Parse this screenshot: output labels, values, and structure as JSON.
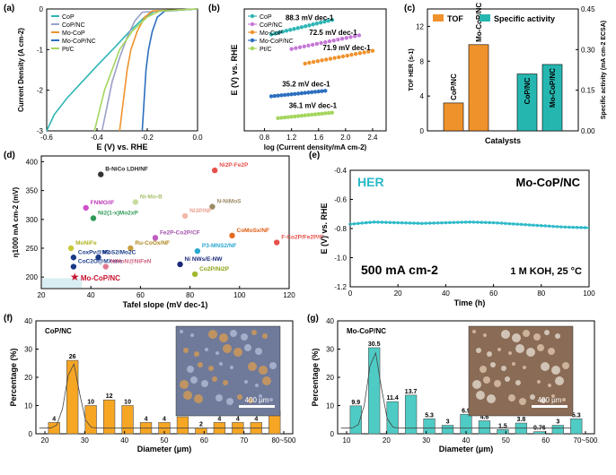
{
  "chart_data": [
    {
      "panel": "(a)",
      "type": "line",
      "xlabel": "E (V) vs. RHE",
      "ylabel": "Current Density (A cm-2)",
      "xlim": [
        -0.6,
        0.0
      ],
      "ylim": [
        -3,
        0
      ],
      "xticks": [
        "-0.6",
        "-0.4",
        "-0.2",
        "0.0"
      ],
      "yticks": [
        "0",
        "-1",
        "-2",
        "-3"
      ],
      "series": [
        {
          "name": "CoP",
          "color": "#2fb5b5",
          "points": [
            [
              -0.6,
              -3.0
            ],
            [
              -0.57,
              -2.6
            ],
            [
              -0.52,
              -2.2
            ],
            [
              -0.46,
              -1.8
            ],
            [
              -0.4,
              -1.4
            ],
            [
              -0.33,
              -0.95
            ],
            [
              -0.27,
              -0.55
            ],
            [
              -0.21,
              -0.2
            ],
            [
              -0.17,
              -0.05
            ],
            [
              0.0,
              0.0
            ]
          ]
        },
        {
          "name": "CoP/NC",
          "color": "#9aa0c8",
          "points": [
            [
              -0.38,
              -3.0
            ],
            [
              -0.36,
              -2.4
            ],
            [
              -0.34,
              -1.8
            ],
            [
              -0.31,
              -1.2
            ],
            [
              -0.28,
              -0.7
            ],
            [
              -0.25,
              -0.3
            ],
            [
              -0.22,
              -0.08
            ],
            [
              0.0,
              0.0
            ]
          ]
        },
        {
          "name": "Mo-CoP",
          "color": "#f0922c",
          "points": [
            [
              -0.31,
              -3.0
            ],
            [
              -0.3,
              -2.5
            ],
            [
              -0.29,
              -2.0
            ],
            [
              -0.28,
              -1.5
            ],
            [
              -0.265,
              -1.0
            ],
            [
              -0.24,
              -0.55
            ],
            [
              -0.21,
              -0.2
            ],
            [
              -0.18,
              -0.05
            ],
            [
              0.0,
              0.0
            ]
          ]
        },
        {
          "name": "Mo-CoP/NC",
          "color": "#2d6fbf",
          "points": [
            [
              -0.22,
              -3.0
            ],
            [
              -0.215,
              -2.5
            ],
            [
              -0.21,
              -2.0
            ],
            [
              -0.205,
              -1.5
            ],
            [
              -0.195,
              -1.0
            ],
            [
              -0.18,
              -0.55
            ],
            [
              -0.16,
              -0.2
            ],
            [
              -0.13,
              -0.05
            ],
            [
              0.0,
              0.0
            ]
          ]
        },
        {
          "name": "Pt/C",
          "color": "#a4d65e",
          "points": [
            [
              -0.41,
              -3.0
            ],
            [
              -0.39,
              -2.5
            ],
            [
              -0.37,
              -2.0
            ],
            [
              -0.34,
              -1.5
            ],
            [
              -0.31,
              -1.0
            ],
            [
              -0.26,
              -0.55
            ],
            [
              -0.2,
              -0.2
            ],
            [
              -0.15,
              -0.05
            ],
            [
              0.0,
              0.0
            ]
          ]
        }
      ]
    },
    {
      "panel": "(b)",
      "type": "scatter",
      "xlabel": "log (Current density/mA cm-2)",
      "ylabel": "E (V) vs. RHE",
      "xlim": [
        0.5,
        2.6
      ],
      "xticks": [
        "0.8",
        "1.2",
        "1.6",
        "2.0",
        "2.4"
      ],
      "series": [
        {
          "name": "CoP",
          "color": "#2fb5b5",
          "slope": "88.3 mV dec-1",
          "start": [
            0.9,
            0.78
          ],
          "end": [
            1.8,
            0.86
          ]
        },
        {
          "name": "CoP/NC",
          "color": "#c678d8",
          "slope": "72.5 mV dec-1",
          "start": [
            1.2,
            0.7
          ],
          "end": [
            2.2,
            0.775
          ]
        },
        {
          "name": "Mo-CoP",
          "color": "#f0922c",
          "slope": "71.9 mV dec-1",
          "start": [
            1.4,
            0.62
          ],
          "end": [
            2.4,
            0.69
          ]
        },
        {
          "name": "Mo-CoP/NC",
          "color": "#2d6fbf",
          "slope": "35.2 mV dec-1",
          "start": [
            0.9,
            0.44
          ],
          "end": [
            1.7,
            0.47
          ]
        },
        {
          "name": "Pt/C",
          "color": "#a4d65e",
          "slope": "36.1 mV dec-1",
          "start": [
            1.0,
            0.32
          ],
          "end": [
            1.8,
            0.35
          ]
        }
      ]
    },
    {
      "panel": "(c)",
      "type": "bar",
      "xlabel": "Catalysts",
      "ylabel_left": "TOF HER (s-1)",
      "ylabel_right": "Specific activity (mA cm-2 ECSA)",
      "ylim_left": [
        0,
        14
      ],
      "ylim_right": [
        0,
        0.45
      ],
      "yticks_left": [
        "0",
        "4",
        "8",
        "12"
      ],
      "yticks_right": [
        "0.00",
        "0.15",
        "0.30",
        "0.45"
      ],
      "legend": [
        "TOF",
        "Specific activity"
      ],
      "series": [
        {
          "name": "TOF",
          "color": "#f0922c",
          "categories": [
            "CoP/NC",
            "Mo-CoP/NC"
          ],
          "values": [
            3.2,
            9.9
          ]
        },
        {
          "name": "Specific activity",
          "color": "#26b6b0",
          "categories": [
            "CoP/NC",
            "Mo-CoP/NC"
          ],
          "values": [
            0.21,
            0.245
          ]
        }
      ]
    },
    {
      "panel": "(d)",
      "type": "scatter",
      "xlabel": "Tafel slope (mV dec-1)",
      "ylabel": "η1000 mA cm-2 (mV)",
      "xlim": [
        20,
        120
      ],
      "ylim": [
        180,
        410
      ],
      "xticks": [
        "20",
        "40",
        "60",
        "80",
        "100",
        "120"
      ],
      "yticks": [
        "200",
        "250",
        "300",
        "350",
        "400"
      ],
      "points": [
        {
          "label": "B-NiCo LDH/NF",
          "x": 44,
          "y": 378,
          "color": "#333333",
          "label_color": "#222222"
        },
        {
          "label": "Ni2P-Fe2P",
          "x": 90,
          "y": 385,
          "color": "#e8504a",
          "label_color": "#e8504a"
        },
        {
          "label": "Ni-Mo-B",
          "x": 58,
          "y": 330,
          "color": "#c9dca0",
          "label_color": "#a9c070"
        },
        {
          "label": "N-NiMoS",
          "x": 89,
          "y": 322,
          "color": "#9c8a64",
          "label_color": "#9c8a64"
        },
        {
          "label": "FNMO/IF",
          "x": 38,
          "y": 320,
          "color": "#d050c8",
          "label_color": "#c03cb8"
        },
        {
          "label": "Ni2(1-x)Mo2xP",
          "x": 41,
          "y": 302,
          "color": "#2e9a55",
          "label_color": "#2e9a55"
        },
        {
          "label": "Ni3P/NF",
          "x": 78,
          "y": 306,
          "color": "#f4b8a8",
          "label_color": "#e8a090"
        },
        {
          "label": "CoMoSx/NF",
          "x": 97,
          "y": 272,
          "color": "#e86a20",
          "label_color": "#e05a10"
        },
        {
          "label": "Fe2P-Co2P/CF",
          "x": 66,
          "y": 268,
          "color": "#c05cc0",
          "label_color": "#a050a8"
        },
        {
          "label": "MoNiFe",
          "x": 32,
          "y": 250,
          "color": "#c8c838",
          "label_color": "#b0b020"
        },
        {
          "label": "Ru-CoOx/NF",
          "x": 56,
          "y": 250,
          "color": "#c8a040",
          "label_color": "#b08820"
        },
        {
          "label": "P3-MNS2/NF",
          "x": 83,
          "y": 245,
          "color": "#2aa8d0",
          "label_color": "#2aa8d0"
        },
        {
          "label": "F-Co2P/Fe2P/IF",
          "x": 115,
          "y": 260,
          "color": "#e8504a",
          "label_color": "#e8504a"
        },
        {
          "label": "CoxPv@NC",
          "x": 33,
          "y": 234,
          "color": "#1a3a88",
          "label_color": "#1a3a88"
        },
        {
          "label": "MoS2/Mo2C",
          "x": 43,
          "y": 234,
          "color": "#1a3a88",
          "label_color": "#1a3a88"
        },
        {
          "label": "CoC2O@MXene",
          "x": 33,
          "y": 218,
          "color": "#1a3a88",
          "label_color": "#1a3a88"
        },
        {
          "label": "NiMoN@NiFeN",
          "x": 46,
          "y": 218,
          "color": "#e07890",
          "label_color": "#d06080"
        },
        {
          "label": "Ni NWs/E-NW",
          "x": 76,
          "y": 222,
          "color": "#1a2a78",
          "label_color": "#1a2a78"
        },
        {
          "label": "Co2P/Ni2P",
          "x": 82,
          "y": 205,
          "color": "#a4b830",
          "label_color": "#8aa010"
        },
        {
          "label": "Mo-CoP/NC",
          "x": 33,
          "y": 200,
          "color": "#c8102e",
          "label_color": "#c8102e"
        }
      ]
    },
    {
      "panel": "(e)",
      "type": "line",
      "xlabel": "Time (h)",
      "ylabel": "E (V) vs. RHE",
      "xlim": [
        0,
        100
      ],
      "ylim": [
        -1.2,
        -0.4
      ],
      "xticks": [
        "0",
        "20",
        "40",
        "60",
        "80",
        "100"
      ],
      "yticks": [
        "-0.4",
        "-0.6",
        "-0.8",
        "-1.0",
        "-1.2"
      ],
      "label_hers": "HER",
      "catalyst": "Mo-CoP/NC",
      "current": "500 mA cm-2",
      "conditions": "1 M KOH,  25 °C",
      "series": [
        {
          "name": "Mo-CoP/NC",
          "color": "#28b8c8",
          "x": [
            0,
            10,
            20,
            30,
            40,
            50,
            60,
            70,
            80,
            90,
            100
          ],
          "y": [
            -0.77,
            -0.755,
            -0.76,
            -0.765,
            -0.76,
            -0.755,
            -0.76,
            -0.77,
            -0.78,
            -0.79,
            -0.795
          ]
        }
      ]
    },
    {
      "panel": "(f)",
      "type": "bar",
      "title": "CoP/NC",
      "xlabel": "Diameter (μm)",
      "ylabel": "Percentage (%)",
      "ylim": [
        0,
        40
      ],
      "xticks": [
        "20",
        "30",
        "40",
        "50",
        "60",
        "70",
        "80~500"
      ],
      "yticks": [
        "0",
        "10",
        "20",
        "30",
        "40"
      ],
      "scale_bar": "400 μm",
      "categories": [
        "22.5",
        "27.5",
        "32.5",
        "37.5",
        "42.5",
        "47.5",
        "52.5",
        "57.5",
        "62.5",
        "67.5",
        "72.5",
        "77.5",
        "80~500"
      ],
      "values": [
        4,
        26,
        10,
        12,
        10,
        4,
        4,
        6,
        2,
        4,
        4,
        4,
        8
      ]
    },
    {
      "panel": "(g)",
      "type": "bar",
      "title": "Mo-CoP/NC",
      "xlabel": "Diameter (μm)",
      "ylabel": "Percentage (%)",
      "ylim": [
        0,
        40
      ],
      "xticks": [
        "10",
        "20",
        "30",
        "40",
        "50",
        "60",
        "70~500"
      ],
      "yticks": [
        "0",
        "10",
        "20",
        "30",
        "40"
      ],
      "scale_bar": "400 μm",
      "categories": [
        "12.5",
        "17.5",
        "22.5",
        "27.5",
        "32.5",
        "37.5",
        "42.5",
        "47.5",
        "52.5",
        "57.5",
        "62.5",
        "67.5",
        "70~500"
      ],
      "values": [
        9.9,
        30.5,
        11.4,
        13.7,
        5.3,
        3.0,
        6.9,
        4.6,
        1.5,
        3.8,
        0.76,
        3.0,
        5.3
      ]
    }
  ]
}
